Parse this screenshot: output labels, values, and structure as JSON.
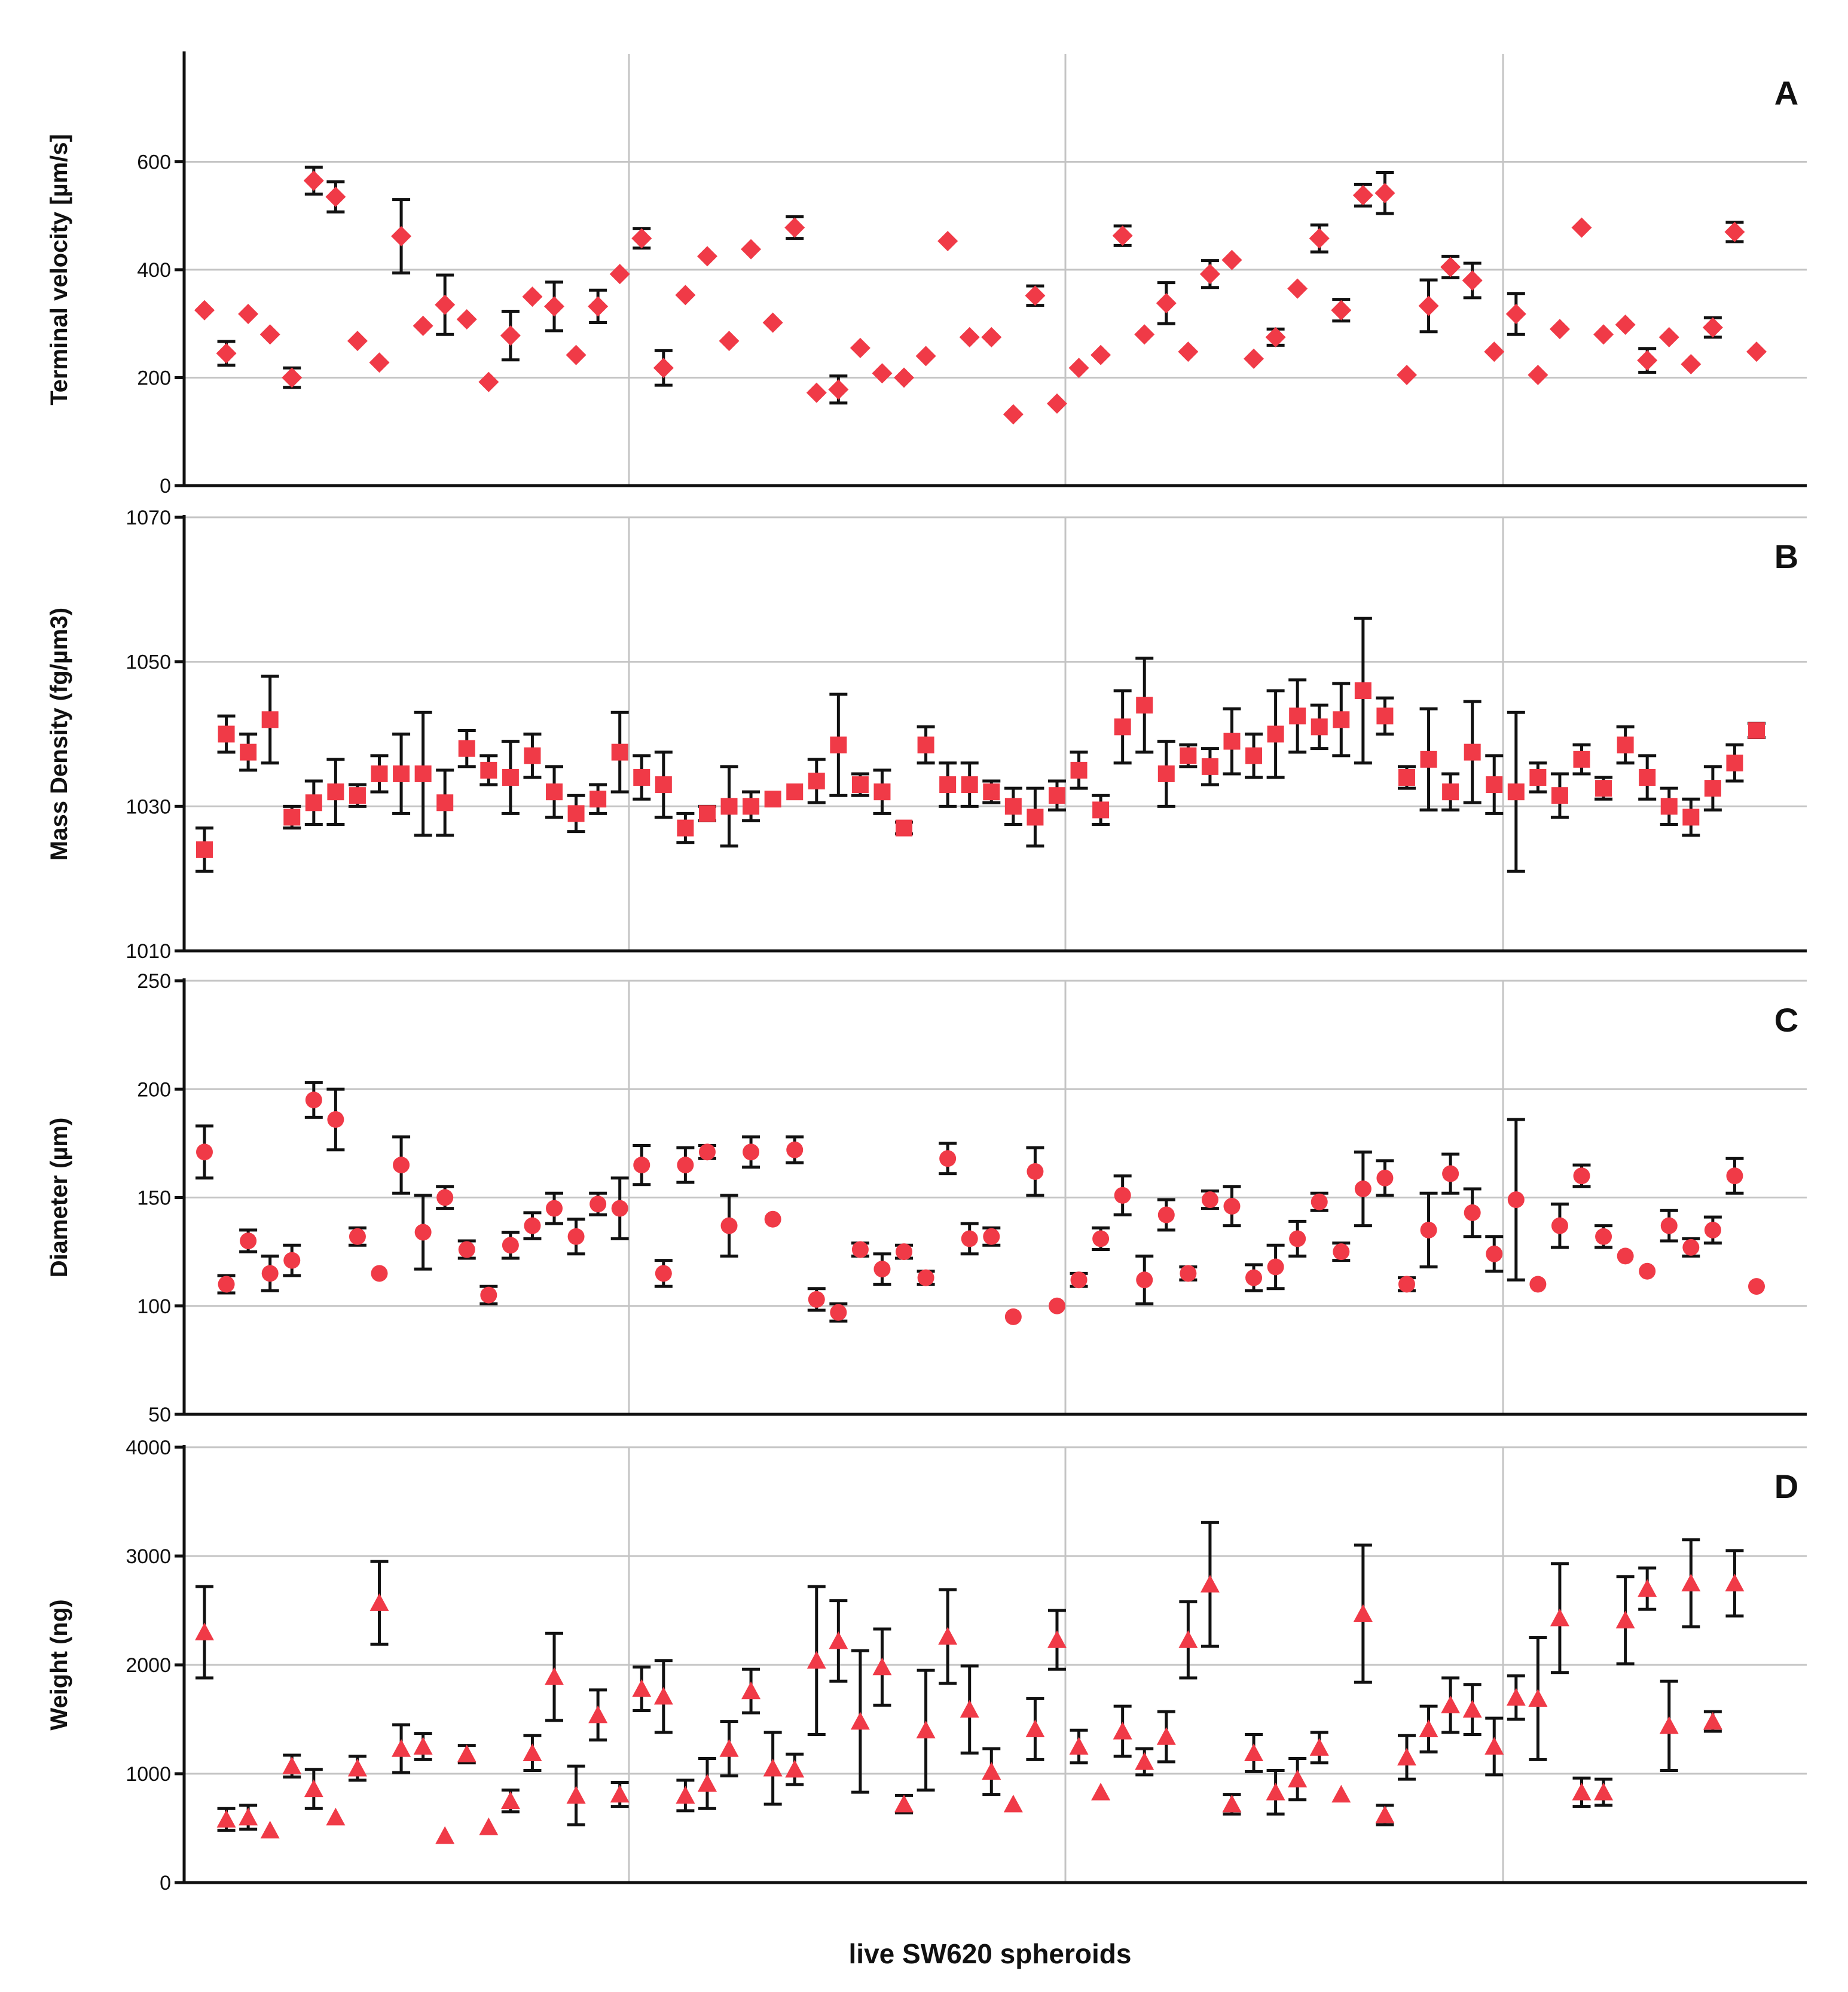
{
  "figure": {
    "xlabel": "live SW620 spheroids",
    "marker_color": "#f03a47",
    "errorbar_color": "#111111",
    "grid_color": "#c4c4c4"
  },
  "chart_data": [
    {
      "type": "scatter",
      "panel": "A",
      "ylabel": "Terminal velocity [µm/s]",
      "marker": "diamond",
      "ylim": [
        0,
        800
      ],
      "yticks": [
        0,
        200,
        400,
        600
      ],
      "values": [
        325,
        245,
        318,
        280,
        200,
        565,
        535,
        268,
        228,
        462,
        296,
        335,
        308,
        192,
        278,
        350,
        332,
        242,
        332,
        392,
        458,
        218,
        353,
        425,
        268,
        438,
        302,
        478,
        172,
        178,
        255,
        208,
        200,
        240,
        453,
        275,
        275,
        132,
        352,
        152,
        218,
        242,
        463,
        280,
        338,
        248,
        392,
        418,
        235,
        275,
        365,
        458,
        325,
        538,
        542,
        205,
        333,
        405,
        380,
        248,
        318,
        205,
        290,
        478,
        280,
        298,
        232,
        275,
        225,
        293,
        470,
        248
      ],
      "errors": [
        0,
        22,
        0,
        0,
        18,
        25,
        28,
        0,
        0,
        68,
        0,
        55,
        0,
        0,
        45,
        0,
        45,
        0,
        30,
        0,
        18,
        32,
        0,
        0,
        0,
        0,
        0,
        20,
        0,
        25,
        0,
        0,
        0,
        0,
        0,
        0,
        0,
        0,
        18,
        0,
        0,
        0,
        18,
        0,
        38,
        0,
        25,
        0,
        0,
        15,
        0,
        25,
        20,
        20,
        38,
        0,
        48,
        20,
        32,
        0,
        38,
        0,
        0,
        0,
        0,
        0,
        22,
        0,
        0,
        18,
        18,
        0
      ]
    },
    {
      "type": "scatter",
      "panel": "B",
      "ylabel": "Mass Density (fg/µm3)",
      "marker": "square",
      "ylim": [
        1010,
        1070
      ],
      "yticks": [
        1010,
        1030,
        1050,
        1070
      ],
      "values": [
        1024,
        1040,
        1037.5,
        1042,
        1028.5,
        1030.5,
        1032,
        1031.5,
        1034.5,
        1034.5,
        1034.5,
        1030.5,
        1038,
        1035,
        1034,
        1037,
        1032,
        1029,
        1031,
        1037.5,
        1034,
        1033,
        1027,
        1029,
        1030,
        1030,
        1031,
        1032,
        1033.5,
        1038.5,
        1033,
        1032,
        1027,
        1038.5,
        1033,
        1033,
        1032,
        1030,
        1028.5,
        1031.5,
        1035,
        1029.5,
        1041,
        1044,
        1034.5,
        1037,
        1035.5,
        1039,
        1037,
        1040,
        1042.5,
        1041,
        1042,
        1046,
        1042.5,
        1034,
        1036.5,
        1032,
        1037.5,
        1033,
        1032,
        1034,
        1031.5,
        1036.5,
        1032.5,
        1038.5,
        1034,
        1030,
        1028.5,
        1032.5,
        1036,
        1040.5
      ],
      "errors": [
        3,
        2.5,
        2.5,
        6,
        1.5,
        3,
        4.5,
        1.5,
        2.5,
        5.5,
        8.5,
        4.5,
        2.5,
        2,
        5,
        3,
        3.5,
        2.5,
        2,
        5.5,
        3,
        4.5,
        2,
        1,
        5.5,
        2,
        0,
        0,
        3,
        7,
        1.5,
        3,
        0.8,
        2.5,
        3,
        3,
        1.5,
        2.5,
        4,
        2,
        2.5,
        2,
        5,
        6.5,
        4.5,
        1.5,
        2.5,
        4.5,
        3,
        6,
        5,
        3,
        5,
        10,
        2.5,
        1.5,
        7,
        2.5,
        7,
        4,
        11,
        2,
        3,
        2,
        1.5,
        2.5,
        3,
        2.5,
        2.5,
        3,
        2.5,
        1
      ]
    },
    {
      "type": "scatter",
      "panel": "C",
      "ylabel": "Diameter (µm)",
      "marker": "circle",
      "ylim": [
        50,
        250
      ],
      "yticks": [
        50,
        100,
        150,
        200,
        250
      ],
      "values": [
        171,
        110,
        130,
        115,
        121,
        195,
        186,
        132,
        115,
        165,
        134,
        150,
        126,
        105,
        128,
        137,
        145,
        132,
        147,
        145,
        165,
        115,
        165,
        171,
        137,
        171,
        140,
        172,
        103,
        97,
        126,
        117,
        125,
        113,
        168,
        131,
        132,
        95,
        162,
        100,
        112,
        131,
        151,
        112,
        142,
        115,
        149,
        146,
        113,
        118,
        131,
        148,
        125,
        154,
        159,
        110,
        135,
        161,
        143,
        124,
        149,
        110,
        137,
        160,
        132,
        123,
        116,
        137,
        127,
        135,
        160,
        109
      ],
      "errors": [
        12,
        4,
        5,
        8,
        7,
        8,
        14,
        4,
        0,
        13,
        17,
        5,
        4,
        4,
        6,
        6,
        7,
        8,
        5,
        14,
        9,
        6,
        8,
        3,
        14,
        7,
        0,
        6,
        5,
        4,
        3,
        7,
        3,
        3,
        7,
        7,
        4,
        0,
        11,
        0,
        3,
        5,
        9,
        11,
        7,
        3,
        4,
        9,
        6,
        10,
        8,
        4,
        4,
        17,
        8,
        3,
        17,
        9,
        11,
        8,
        37,
        0,
        10,
        5,
        5,
        0,
        0,
        7,
        4,
        6,
        8,
        0
      ]
    },
    {
      "type": "scatter",
      "panel": "D",
      "ylabel": "Weight (ng)",
      "marker": "triangle",
      "ylim": [
        0,
        4000
      ],
      "yticks": [
        0,
        1000,
        2000,
        3000,
        4000
      ],
      "values": [
        2300,
        580,
        600,
        480,
        1070,
        860,
        600,
        1050,
        2570,
        1230,
        1250,
        430,
        1180,
        510,
        750,
        1190,
        1890,
        800,
        1540,
        810,
        1780,
        1710,
        800,
        910,
        1230,
        1760,
        1050,
        1040,
        2040,
        2220,
        1480,
        1980,
        720,
        1400,
        2260,
        1590,
        1020,
        720,
        1410,
        2230,
        1250,
        830,
        1390,
        1110,
        1340,
        2230,
        2740,
        720,
        1190,
        830,
        950,
        1240,
        810,
        2470,
        620,
        1150,
        1410,
        1630,
        1590,
        1250,
        1700,
        1690,
        2430,
        830,
        830,
        2410,
        2700,
        1440,
        2750,
        1480,
        2750
      ],
      "errors": [
        420,
        100,
        110,
        0,
        100,
        180,
        0,
        110,
        380,
        220,
        120,
        0,
        80,
        0,
        100,
        160,
        400,
        270,
        230,
        110,
        200,
        330,
        140,
        230,
        250,
        200,
        330,
        140,
        680,
        370,
        650,
        350,
        80,
        550,
        430,
        400,
        210,
        0,
        280,
        270,
        150,
        0,
        230,
        120,
        230,
        350,
        570,
        90,
        170,
        200,
        190,
        140,
        0,
        630,
        90,
        200,
        210,
        250,
        230,
        260,
        200,
        560,
        500,
        130,
        120,
        400,
        190,
        410,
        400,
        90,
        300
      ]
    }
  ]
}
